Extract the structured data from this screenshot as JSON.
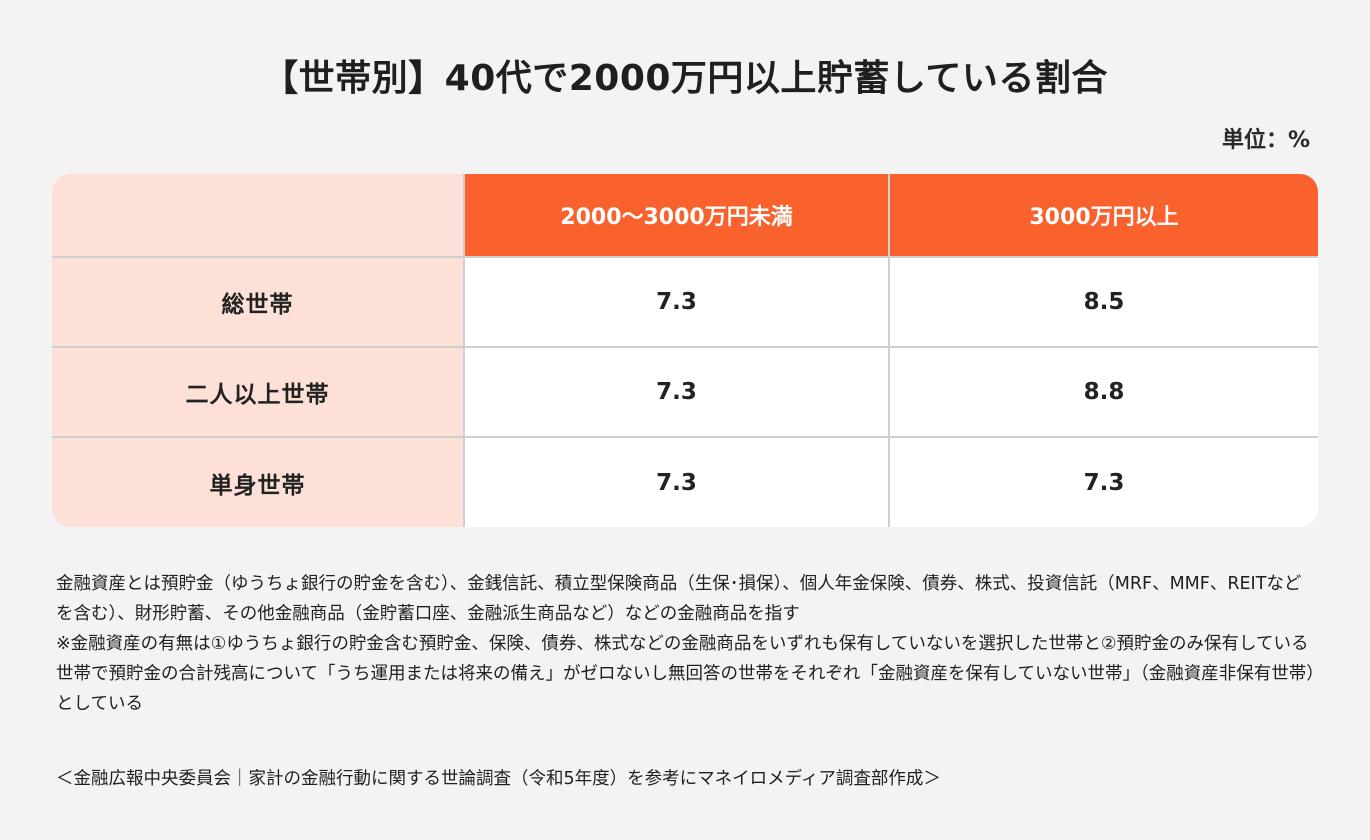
{
  "header": {
    "title": "【世帯別】40代で2000万円以上貯蓄している割合",
    "unit": "単位：%"
  },
  "table": {
    "corner": "",
    "columns": [
      "2000〜3000万円未満",
      "3000万円以上"
    ],
    "rows": [
      {
        "label": "総世帯",
        "values": [
          "7.3",
          "8.5"
        ]
      },
      {
        "label": "二人以上世帯",
        "values": [
          "7.3",
          "8.8"
        ]
      },
      {
        "label": "単身世帯",
        "values": [
          "7.3",
          "7.3"
        ]
      }
    ]
  },
  "notes": {
    "line1": "金融資産とは預貯金（ゆうちょ銀行の貯金を含む）、金銭信託、積立型保険商品（生保･損保）、個人年金保険、債券、株式、投資信託（MRF、MMF、REITなどを含む）、財形貯蓄、その他金融商品（金貯蓄口座、金融派生商品など）などの金融商品を指す",
    "line2": "※金融資産の有無は①ゆうちょ銀行の貯金含む預貯金、保険、債券、株式などの金融商品をいずれも保有していないを選択した世帯と②預貯金のみ保有している世帯で預貯金の合計残高について「うち運用または将来の備え」がゼロないし無回答の世帯をそれぞれ「金融資産を保有していない世帯」（金融資産非保有世帯）としている"
  },
  "source": "＜金融広報中央委員会｜家計の金融行動に関する世論調査（令和5年度）を参考にマネイロメディア調査部作成＞",
  "colors": {
    "header_bg": "#f9612d",
    "rowhead_bg": "#fde0d7",
    "page_bg": "#f3f3f3",
    "grid_line": "#cfcfcf"
  },
  "chart_data": {
    "type": "table",
    "title": "【世帯別】40代で2000万円以上貯蓄している割合",
    "unit": "%",
    "columns": [
      "2000〜3000万円未満",
      "3000万円以上"
    ],
    "categories": [
      "総世帯",
      "二人以上世帯",
      "単身世帯"
    ],
    "series": [
      {
        "name": "2000〜3000万円未満",
        "values": [
          7.3,
          7.3,
          7.3
        ]
      },
      {
        "name": "3000万円以上",
        "values": [
          8.5,
          8.8,
          7.3
        ]
      }
    ],
    "source": "金融広報中央委員会｜家計の金融行動に関する世論調査（令和5年度）"
  }
}
